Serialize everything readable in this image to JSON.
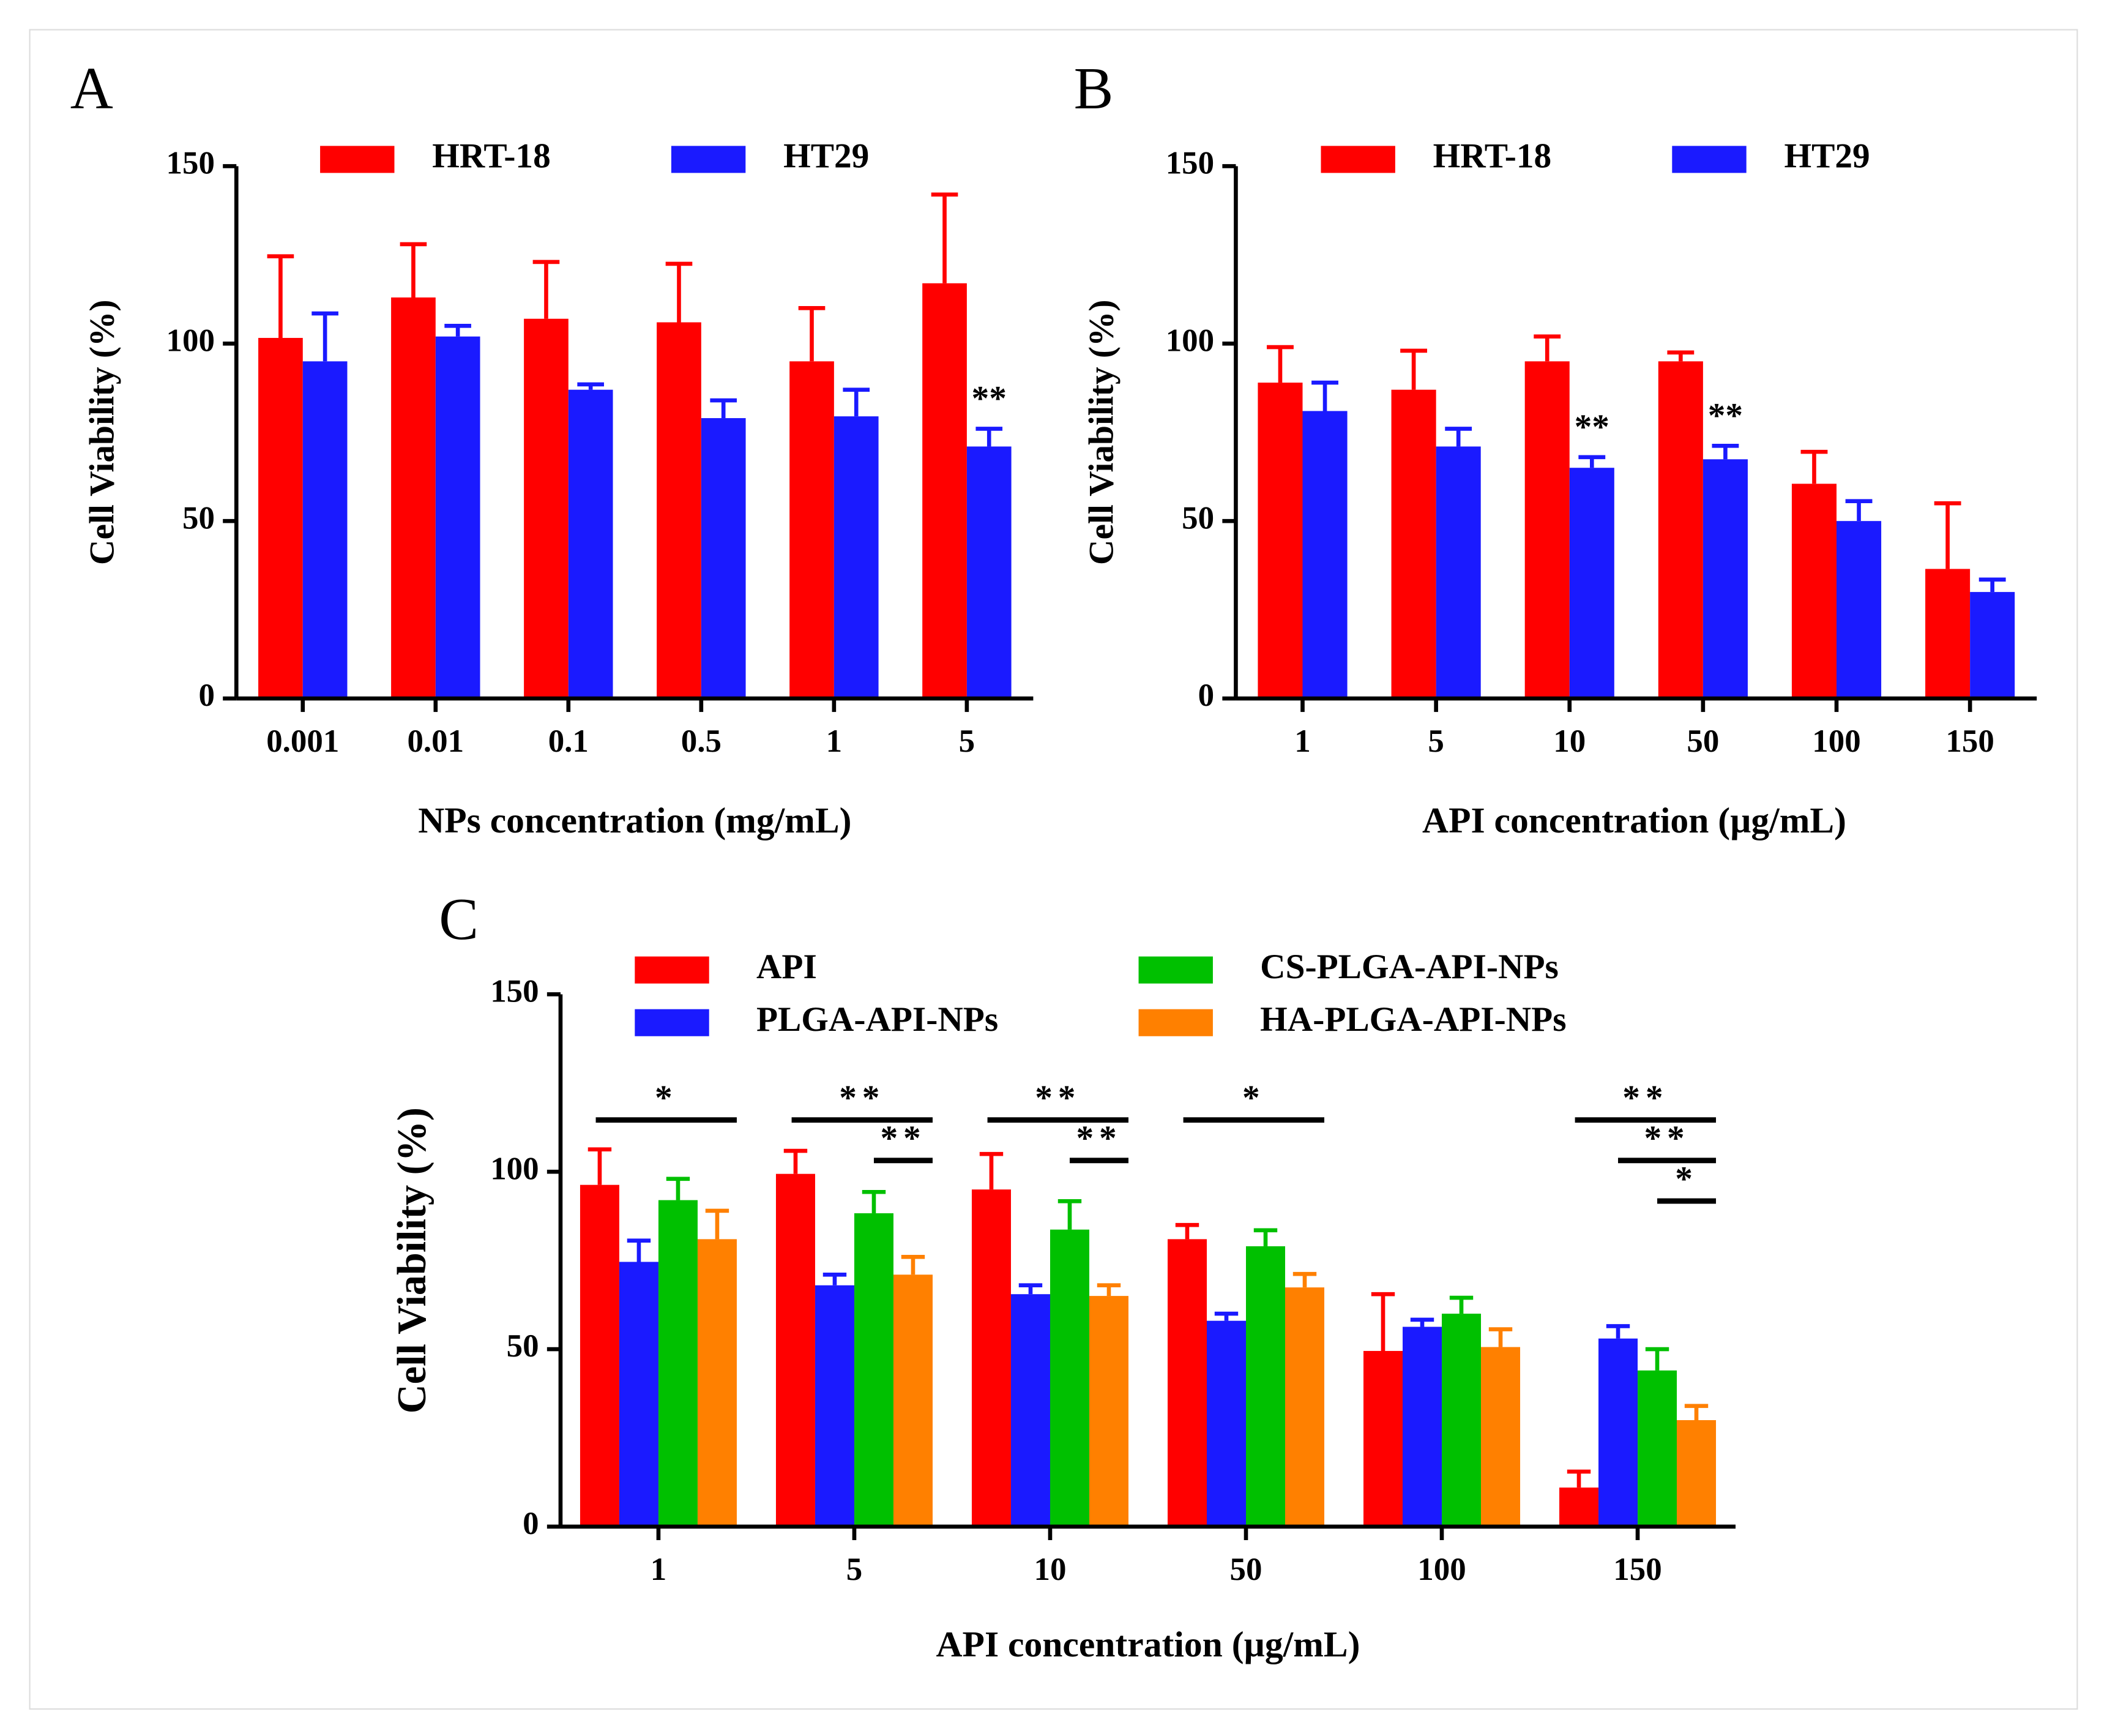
{
  "chart_data": [
    {
      "type": "bar",
      "panel": "A",
      "xlabel": "NPs concentration (mg/mL)",
      "ylabel": "Cell Viability (%)",
      "categories": [
        "0.001",
        "0.01",
        "0.1",
        "0.5",
        "1",
        "5"
      ],
      "series": [
        {
          "name": "HRT-18",
          "color": "#ff0000",
          "values": [
            101.6,
            113,
            107,
            106,
            95,
            117
          ],
          "errors": [
            23,
            15,
            16,
            16.5,
            15,
            25
          ]
        },
        {
          "name": "HT29",
          "color": "#1a1aff",
          "values": [
            95,
            102,
            87,
            79,
            79.5,
            71
          ],
          "errors": [
            13.5,
            3,
            1.5,
            5,
            7.5,
            5
          ]
        }
      ],
      "ylim": [
        0,
        150
      ],
      "yticks": [
        0,
        50,
        100,
        150
      ],
      "annotations": [
        "**"
      ]
    },
    {
      "type": "bar",
      "panel": "B",
      "xlabel": "API concentration (µg/mL)",
      "ylabel": "Cell Viability (%)",
      "categories": [
        "1",
        "5",
        "10",
        "50",
        "100",
        "150"
      ],
      "series": [
        {
          "name": "HRT-18",
          "color": "#ff0000",
          "values": [
            89,
            87,
            95,
            95,
            60.5,
            36.5
          ],
          "errors": [
            10,
            11,
            7,
            2.5,
            9,
            18.5
          ]
        },
        {
          "name": "HT29",
          "color": "#1a1aff",
          "values": [
            81,
            71,
            65,
            67.4,
            50,
            30
          ],
          "errors": [
            8,
            5,
            3,
            3.8,
            5.6,
            3.5
          ]
        }
      ],
      "ylim": [
        0,
        150
      ],
      "yticks": [
        0,
        50,
        100,
        150
      ],
      "annotations": [
        "**",
        "**"
      ]
    },
    {
      "type": "bar",
      "panel": "C",
      "xlabel": "API concentration (µg/mL)",
      "ylabel": "Cell Viability (%)",
      "categories": [
        "1",
        "5",
        "10",
        "50",
        "100",
        "150"
      ],
      "series": [
        {
          "name": "API",
          "color": "#ff0000",
          "values": [
            96.3,
            99.4,
            95,
            81,
            49.5,
            11
          ],
          "errors": [
            10,
            6.5,
            10,
            4,
            16,
            4.5
          ]
        },
        {
          "name": "PLGA-API-NPs",
          "color": "#1a1aff",
          "values": [
            74.6,
            68,
            65.5,
            58,
            56.3,
            53
          ],
          "errors": [
            6,
            3,
            2.5,
            2,
            2,
            3.5
          ]
        },
        {
          "name": "CS-PLGA-API-NPs",
          "color": "#00c000",
          "values": [
            92,
            88.3,
            83.7,
            79,
            60,
            44
          ],
          "errors": [
            6,
            6,
            8,
            4.5,
            4.5,
            6
          ]
        },
        {
          "name": "HA-PLGA-API-NPs",
          "color": "#ff8000",
          "values": [
            81,
            71,
            65,
            67.4,
            50.6,
            30
          ],
          "errors": [
            8,
            5,
            3,
            3.8,
            5,
            4
          ]
        }
      ],
      "ylim": [
        0,
        150
      ],
      "yticks": [
        0,
        50,
        100,
        150
      ],
      "annotations": [
        "*",
        "**",
        "**",
        "**",
        "**",
        "*",
        "**",
        "**",
        "*"
      ]
    }
  ]
}
